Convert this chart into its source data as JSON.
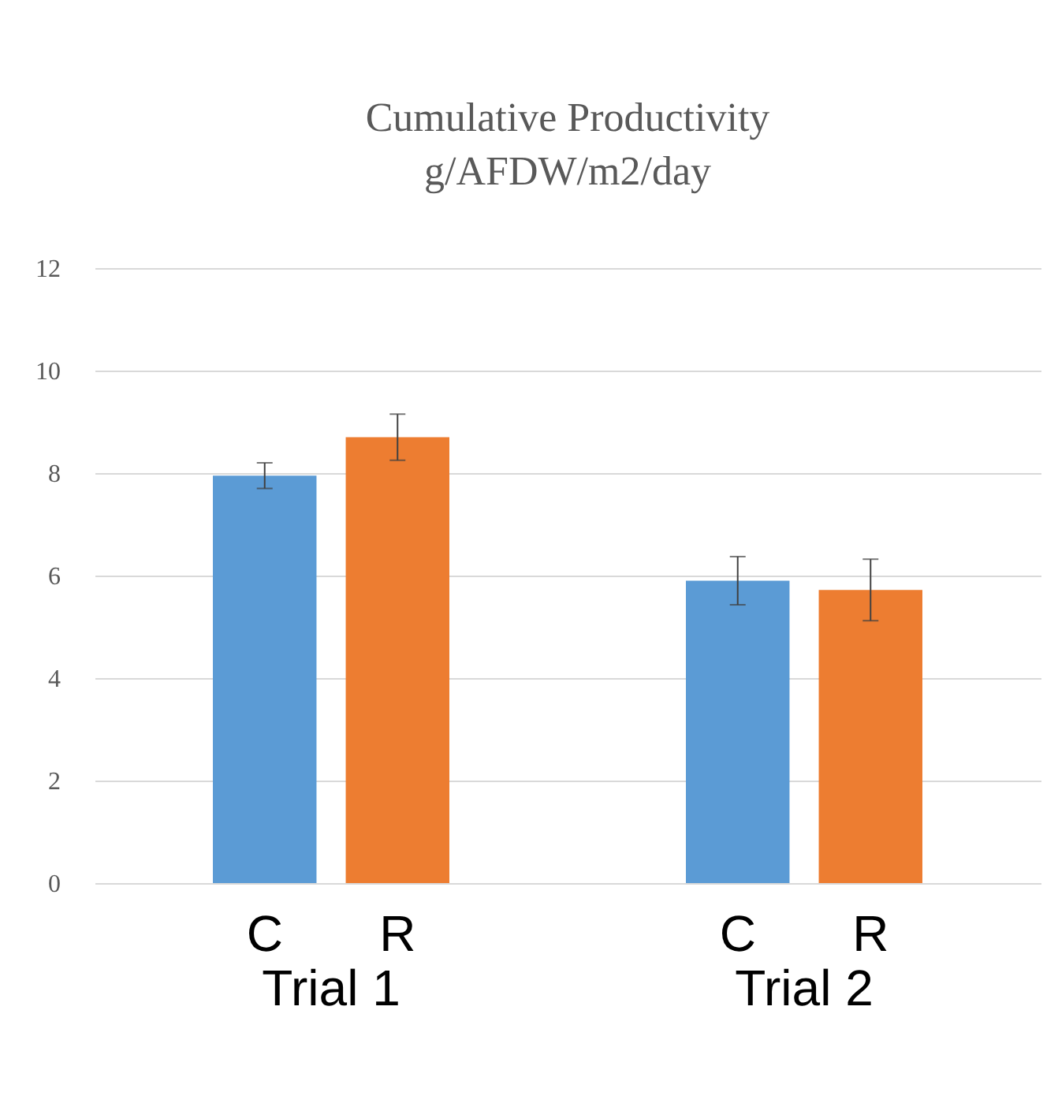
{
  "chart_data": {
    "type": "bar",
    "title": "Cumulative Productivity",
    "subtitle": "g/AFDW/m2/day",
    "categories": [
      "Trial 1",
      "Trial 2"
    ],
    "series": [
      {
        "name": "C",
        "color": "#5b9bd5",
        "values": [
          7.95,
          5.9
        ],
        "errors": [
          0.25,
          0.47
        ]
      },
      {
        "name": "R",
        "color": "#ed7d31",
        "values": [
          8.7,
          5.72
        ],
        "errors": [
          0.45,
          0.6
        ]
      }
    ],
    "ylim": [
      0,
      12
    ],
    "yticks": [
      0,
      2,
      4,
      6,
      8,
      10,
      12
    ],
    "grid": "y",
    "legend": false
  }
}
